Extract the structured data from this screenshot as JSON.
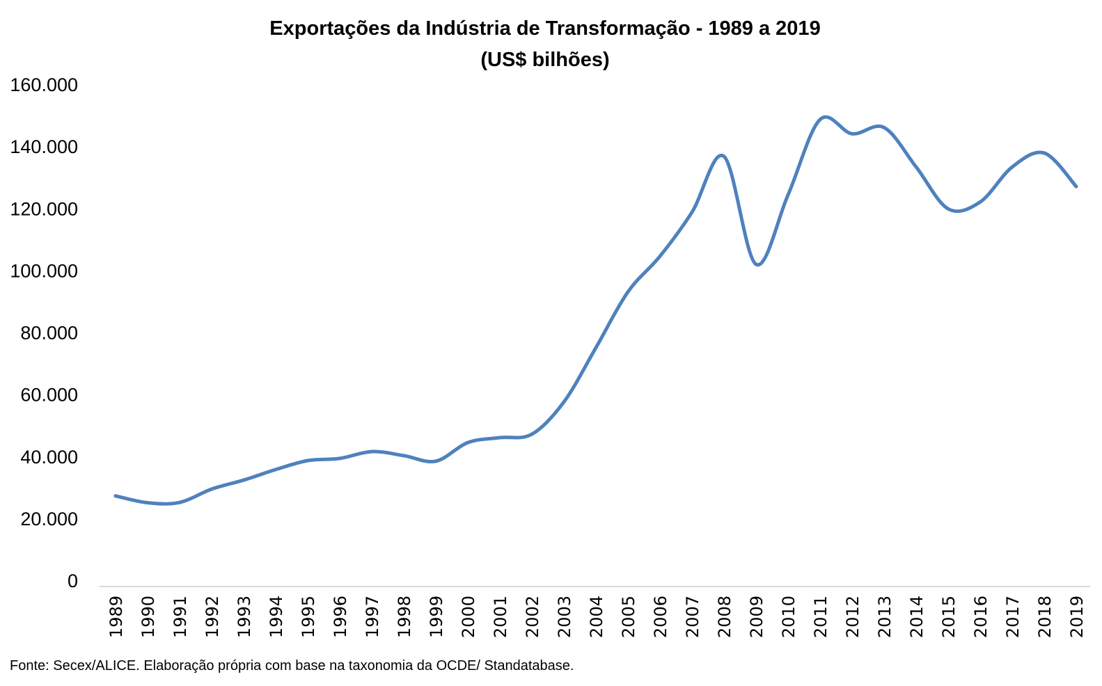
{
  "chart_data": {
    "type": "line",
    "title": "Exportações da Indústria de Transformação - 1989 a 2019",
    "subtitle": "(US$ bilhões)",
    "xlabel": "",
    "ylabel": "",
    "x": [
      "1989",
      "1990",
      "1991",
      "1992",
      "1993",
      "1994",
      "1995",
      "1996",
      "1997",
      "1998",
      "1999",
      "2000",
      "2001",
      "2002",
      "2003",
      "2004",
      "2005",
      "2006",
      "2007",
      "2008",
      "2009",
      "2010",
      "2011",
      "2012",
      "2013",
      "2014",
      "2015",
      "2016",
      "2017",
      "2018",
      "2019"
    ],
    "series": [
      {
        "name": "Exportações da Indústria de Transformação",
        "color": "#4F81BD",
        "smooth": true,
        "values": [
          27200,
          25000,
          25100,
          29400,
          32300,
          35700,
          38600,
          39300,
          41500,
          40200,
          38400,
          44400,
          46000,
          47100,
          57500,
          75000,
          93000,
          104500,
          118700,
          136700,
          101900,
          124300,
          148600,
          144000,
          146000,
          133300,
          119800,
          122000,
          133300,
          137800,
          127000
        ]
      }
    ],
    "ylim": [
      0,
      160000
    ],
    "yticks": [
      0,
      20000,
      40000,
      60000,
      80000,
      100000,
      120000,
      140000,
      160000
    ],
    "ytick_labels": [
      "0",
      "20.000",
      "40.000",
      "60.000",
      "80.000",
      "100.000",
      "120.000",
      "140.000",
      "160.000"
    ],
    "grid": false,
    "legend": "none",
    "axis_color": "#D9D9D9"
  },
  "source_note": "Fonte: Secex/ALICE. Elaboração própria com base na taxonomia da OCDE/ Standatabase."
}
